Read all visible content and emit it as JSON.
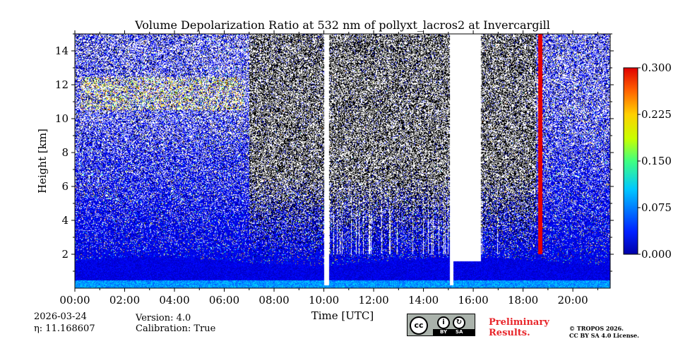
{
  "chart_data": {
    "type": "heatmap",
    "title": "Volume Depolarization Ratio at 532 nm of pollyxt_lacros2 at Invercargill",
    "xlabel": "Time [UTC]",
    "ylabel": "Height [km]",
    "xlim_hours": [
      0,
      21.5
    ],
    "ylim_km": [
      0,
      15
    ],
    "x_ticks": [
      {
        "value": 0,
        "label": "00:00"
      },
      {
        "value": 2,
        "label": "02:00"
      },
      {
        "value": 4,
        "label": "04:00"
      },
      {
        "value": 6,
        "label": "06:00"
      },
      {
        "value": 8,
        "label": "08:00"
      },
      {
        "value": 10,
        "label": "10:00"
      },
      {
        "value": 12,
        "label": "12:00"
      },
      {
        "value": 14,
        "label": "14:00"
      },
      {
        "value": 16,
        "label": "16:00"
      },
      {
        "value": 18,
        "label": "18:00"
      },
      {
        "value": 20,
        "label": "20:00"
      }
    ],
    "y_ticks": [
      {
        "value": 2,
        "label": "2"
      },
      {
        "value": 4,
        "label": "4"
      },
      {
        "value": 6,
        "label": "6"
      },
      {
        "value": 8,
        "label": "8"
      },
      {
        "value": 10,
        "label": "10"
      },
      {
        "value": 12,
        "label": "12"
      },
      {
        "value": 14,
        "label": "14"
      }
    ],
    "colorbar": {
      "min": 0.0,
      "max": 0.3,
      "ticks": [
        {
          "value": 0.0,
          "label": "0.000"
        },
        {
          "value": 0.075,
          "label": "0.075"
        },
        {
          "value": 0.15,
          "label": "0.150"
        },
        {
          "value": 0.225,
          "label": "0.225"
        },
        {
          "value": 0.3,
          "label": "0.300"
        }
      ],
      "colormap": "jet"
    },
    "features": {
      "missing_data_gaps_hours": [
        [
          10.0,
          10.2
        ],
        [
          15.05,
          15.2
        ],
        [
          15.2,
          16.3
        ]
      ],
      "boundary_layer_top_km": 1.6,
      "cirrus_layer_km": [
        10.5,
        12.5
      ],
      "cirrus_time_hours": [
        0.2,
        6.8
      ],
      "aerosol_depol_typical": 0.02
    }
  },
  "footer": {
    "date": "2026-03-24",
    "eta": "η: 11.168607",
    "version": "Version: 4.0",
    "calibration": "Calibration: True",
    "license_badge": {
      "cc": "cc",
      "by": "BY",
      "sa": "SA"
    },
    "preliminary_line1": "Preliminary",
    "preliminary_line2": "Results.",
    "copyright_line1": "© TROPOS 2026.",
    "copyright_line2": "CC BY SA 4.0 License."
  }
}
